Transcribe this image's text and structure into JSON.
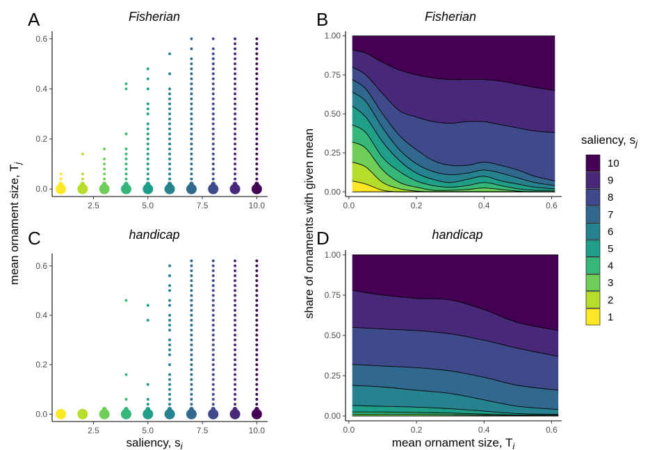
{
  "legend": {
    "title": "saliency, s",
    "title_sub": "j",
    "entries": [
      "10",
      "9",
      "8",
      "7",
      "6",
      "5",
      "4",
      "3",
      "2",
      "1"
    ],
    "colors": [
      "#440154",
      "#482878",
      "#3e4a89",
      "#31688e",
      "#26828e",
      "#1f9e89",
      "#35b779",
      "#6ece58",
      "#b5de2b",
      "#fde725"
    ]
  },
  "axes": {
    "left_ylabel": "mean ornament size, T",
    "left_ylabel_sub": "j",
    "left_xlabel": "saliency, s",
    "left_xlabel_sub": "i",
    "right_ylabel": "share of ornaments with given mean",
    "right_xlabel": "mean ornament size, T",
    "right_xlabel_sub": "i"
  },
  "chart_data": [
    {
      "panel": "A",
      "title": "Fisherian",
      "type": "scatter",
      "xticks": [
        "2.5",
        "5.0",
        "7.5",
        "10.0"
      ],
      "yticks": [
        "0.0",
        "0.2",
        "0.4",
        "0.6"
      ],
      "xlim": [
        0.6,
        10.5
      ],
      "ylim": [
        -0.03,
        0.63
      ],
      "columns": [
        {
          "s": 1,
          "values": [
            0.0,
            0.02,
            0.04,
            0.06
          ]
        },
        {
          "s": 2,
          "values": [
            0.0,
            0.02,
            0.04,
            0.06,
            0.14
          ]
        },
        {
          "s": 3,
          "values": [
            0.0,
            0.02,
            0.04,
            0.06,
            0.08,
            0.1,
            0.12,
            0.16
          ]
        },
        {
          "s": 4,
          "values": [
            0.0,
            0.02,
            0.04,
            0.06,
            0.08,
            0.1,
            0.12,
            0.14,
            0.16,
            0.22,
            0.4,
            0.42
          ]
        },
        {
          "s": 5,
          "values": [
            0.0,
            0.02,
            0.04,
            0.06,
            0.08,
            0.1,
            0.12,
            0.14,
            0.16,
            0.18,
            0.2,
            0.22,
            0.24,
            0.26,
            0.3,
            0.32,
            0.34,
            0.4,
            0.44,
            0.48
          ]
        },
        {
          "s": 6,
          "values": [
            0.0,
            0.02,
            0.04,
            0.06,
            0.08,
            0.1,
            0.12,
            0.14,
            0.16,
            0.18,
            0.2,
            0.22,
            0.24,
            0.26,
            0.28,
            0.3,
            0.32,
            0.34,
            0.36,
            0.38,
            0.4,
            0.46,
            0.54
          ]
        },
        {
          "s": 7,
          "values": [
            0.0,
            0.02,
            0.04,
            0.06,
            0.08,
            0.1,
            0.12,
            0.14,
            0.16,
            0.18,
            0.2,
            0.22,
            0.24,
            0.26,
            0.28,
            0.3,
            0.32,
            0.34,
            0.36,
            0.38,
            0.4,
            0.42,
            0.44,
            0.46,
            0.48,
            0.5,
            0.52,
            0.56,
            0.6
          ]
        },
        {
          "s": 8,
          "values": [
            0.0,
            0.02,
            0.04,
            0.06,
            0.08,
            0.1,
            0.12,
            0.14,
            0.16,
            0.18,
            0.2,
            0.22,
            0.24,
            0.26,
            0.28,
            0.3,
            0.32,
            0.34,
            0.36,
            0.38,
            0.4,
            0.42,
            0.44,
            0.46,
            0.48,
            0.5,
            0.52,
            0.54,
            0.56,
            0.6
          ]
        },
        {
          "s": 9,
          "values": [
            0.0,
            0.02,
            0.04,
            0.06,
            0.08,
            0.1,
            0.12,
            0.14,
            0.16,
            0.18,
            0.2,
            0.22,
            0.24,
            0.26,
            0.28,
            0.3,
            0.32,
            0.34,
            0.36,
            0.38,
            0.4,
            0.42,
            0.44,
            0.46,
            0.48,
            0.5,
            0.52,
            0.54,
            0.56,
            0.58,
            0.6
          ]
        },
        {
          "s": 10,
          "values": [
            0.0,
            0.02,
            0.04,
            0.06,
            0.08,
            0.1,
            0.12,
            0.14,
            0.16,
            0.18,
            0.2,
            0.22,
            0.24,
            0.26,
            0.28,
            0.3,
            0.32,
            0.34,
            0.36,
            0.38,
            0.4,
            0.42,
            0.44,
            0.46,
            0.48,
            0.5,
            0.52,
            0.54,
            0.56,
            0.58,
            0.6
          ]
        }
      ]
    },
    {
      "panel": "B",
      "title": "Fisherian",
      "type": "area",
      "xticks": [
        "0.0",
        "0.2",
        "0.4",
        "0.6"
      ],
      "yticks": [
        "0.00",
        "0.25",
        "0.50",
        "0.75",
        "1.00"
      ],
      "xlim": [
        -0.01,
        0.63
      ],
      "ylim": [
        -0.03,
        1.03
      ],
      "x": [
        0.01,
        0.05,
        0.1,
        0.15,
        0.2,
        0.25,
        0.3,
        0.35,
        0.4,
        0.45,
        0.5,
        0.55,
        0.61
      ],
      "boundaries": [
        [
          0.07,
          0.05,
          0.01,
          0.0,
          0.0,
          0.0,
          0.0,
          0.0,
          0.0,
          0.0,
          0.0,
          0.0,
          0.0
        ],
        [
          0.19,
          0.16,
          0.06,
          0.02,
          0.005,
          0.0,
          0.0,
          0.0,
          0.0,
          0.0,
          0.0,
          0.0,
          0.0
        ],
        [
          0.32,
          0.28,
          0.14,
          0.06,
          0.03,
          0.01,
          0.01,
          0.015,
          0.025,
          0.015,
          0.005,
          0.0,
          0.0
        ],
        [
          0.43,
          0.38,
          0.22,
          0.13,
          0.07,
          0.04,
          0.03,
          0.04,
          0.06,
          0.04,
          0.02,
          0.01,
          0.01
        ],
        [
          0.55,
          0.48,
          0.32,
          0.2,
          0.12,
          0.08,
          0.06,
          0.08,
          0.1,
          0.07,
          0.05,
          0.03,
          0.02
        ],
        [
          0.64,
          0.58,
          0.41,
          0.27,
          0.18,
          0.13,
          0.11,
          0.12,
          0.14,
          0.12,
          0.09,
          0.06,
          0.04
        ],
        [
          0.72,
          0.66,
          0.5,
          0.36,
          0.27,
          0.2,
          0.17,
          0.17,
          0.19,
          0.17,
          0.14,
          0.1,
          0.07
        ],
        [
          0.8,
          0.75,
          0.63,
          0.52,
          0.48,
          0.45,
          0.44,
          0.45,
          0.45,
          0.43,
          0.41,
          0.39,
          0.38
        ],
        [
          0.91,
          0.89,
          0.83,
          0.78,
          0.75,
          0.73,
          0.72,
          0.72,
          0.72,
          0.71,
          0.69,
          0.67,
          0.65
        ]
      ]
    },
    {
      "panel": "C",
      "title": "handicap",
      "type": "scatter",
      "xticks": [
        "2.5",
        "5.0",
        "7.5",
        "10.0"
      ],
      "yticks": [
        "0.0",
        "0.2",
        "0.4",
        "0.6"
      ],
      "xlim": [
        0.6,
        10.5
      ],
      "ylim": [
        -0.03,
        0.65
      ],
      "columns": [
        {
          "s": 1,
          "values": [
            0.0
          ]
        },
        {
          "s": 2,
          "values": [
            0.0
          ]
        },
        {
          "s": 3,
          "values": [
            0.0,
            0.02
          ]
        },
        {
          "s": 4,
          "values": [
            0.0,
            0.02,
            0.06,
            0.16,
            0.46
          ]
        },
        {
          "s": 5,
          "values": [
            0.0,
            0.02,
            0.04,
            0.06,
            0.12,
            0.38,
            0.44
          ]
        },
        {
          "s": 6,
          "values": [
            0.0,
            0.02,
            0.04,
            0.06,
            0.08,
            0.1,
            0.12,
            0.14,
            0.16,
            0.2,
            0.24,
            0.26,
            0.28,
            0.3,
            0.34,
            0.36,
            0.38,
            0.4,
            0.44,
            0.46,
            0.5,
            0.52,
            0.56,
            0.6
          ]
        },
        {
          "s": 7,
          "values": [
            0.0,
            0.02,
            0.04,
            0.06,
            0.08,
            0.1,
            0.12,
            0.14,
            0.16,
            0.18,
            0.2,
            0.22,
            0.24,
            0.26,
            0.28,
            0.3,
            0.32,
            0.34,
            0.36,
            0.38,
            0.4,
            0.42,
            0.44,
            0.46,
            0.48,
            0.5,
            0.52,
            0.54,
            0.56,
            0.58,
            0.6,
            0.62
          ]
        },
        {
          "s": 8,
          "values": [
            0.0,
            0.02,
            0.04,
            0.06,
            0.08,
            0.1,
            0.12,
            0.14,
            0.16,
            0.18,
            0.2,
            0.22,
            0.24,
            0.26,
            0.28,
            0.3,
            0.32,
            0.34,
            0.36,
            0.38,
            0.4,
            0.42,
            0.44,
            0.46,
            0.48,
            0.5,
            0.52,
            0.54,
            0.56,
            0.58,
            0.6,
            0.62
          ]
        },
        {
          "s": 9,
          "values": [
            0.0,
            0.02,
            0.04,
            0.06,
            0.08,
            0.1,
            0.12,
            0.14,
            0.16,
            0.18,
            0.2,
            0.22,
            0.24,
            0.26,
            0.28,
            0.3,
            0.32,
            0.34,
            0.36,
            0.38,
            0.4,
            0.42,
            0.44,
            0.46,
            0.48,
            0.5,
            0.52,
            0.54,
            0.56,
            0.58,
            0.6,
            0.62
          ]
        },
        {
          "s": 10,
          "values": [
            0.0,
            0.02,
            0.04,
            0.06,
            0.08,
            0.1,
            0.12,
            0.14,
            0.16,
            0.18,
            0.2,
            0.22,
            0.24,
            0.26,
            0.28,
            0.3,
            0.32,
            0.34,
            0.36,
            0.38,
            0.4,
            0.42,
            0.44,
            0.46,
            0.48,
            0.5,
            0.52,
            0.54,
            0.56,
            0.58,
            0.6,
            0.62
          ]
        }
      ]
    },
    {
      "panel": "D",
      "title": "handicap",
      "type": "area",
      "xticks": [
        "0.0",
        "0.2",
        "0.4",
        "0.6"
      ],
      "yticks": [
        "0.00",
        "0.25",
        "0.50",
        "0.75",
        "1.00"
      ],
      "xlim": [
        -0.01,
        0.63
      ],
      "ylim": [
        -0.03,
        1.03
      ],
      "x": [
        0.01,
        0.1,
        0.2,
        0.3,
        0.4,
        0.5,
        0.62
      ],
      "boundaries": [
        [
          0.0,
          0.0,
          0.0,
          0.0,
          0.0,
          0.0,
          0.0
        ],
        [
          0.0,
          0.0,
          0.0,
          0.0,
          0.0,
          0.0,
          0.0
        ],
        [
          0.01,
          0.01,
          0.01,
          0.008,
          0.005,
          0.003,
          0.002
        ],
        [
          0.025,
          0.025,
          0.022,
          0.018,
          0.012,
          0.007,
          0.005
        ],
        [
          0.065,
          0.06,
          0.055,
          0.045,
          0.03,
          0.015,
          0.01
        ],
        [
          0.19,
          0.18,
          0.16,
          0.14,
          0.1,
          0.06,
          0.04
        ],
        [
          0.32,
          0.31,
          0.3,
          0.28,
          0.24,
          0.19,
          0.16
        ],
        [
          0.55,
          0.54,
          0.53,
          0.51,
          0.47,
          0.42,
          0.37
        ],
        [
          0.78,
          0.75,
          0.73,
          0.72,
          0.66,
          0.58,
          0.53
        ]
      ]
    }
  ]
}
